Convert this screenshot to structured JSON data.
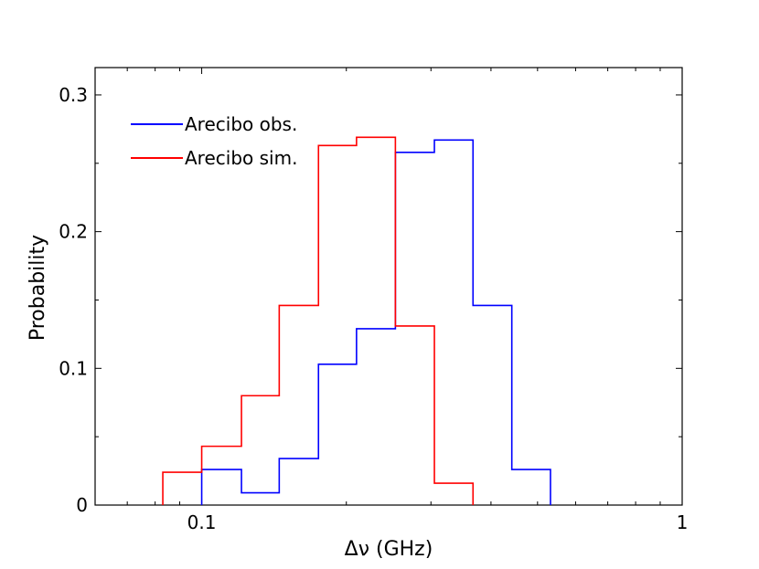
{
  "chart_data": {
    "type": "histogram-step",
    "xscale": "log",
    "xlim": [
      0.06,
      1.0
    ],
    "ylim": [
      0,
      0.32
    ],
    "xlabel": "Δν (GHz)",
    "ylabel": "Probability",
    "x_ticks": [
      {
        "value": 0.1,
        "label": "0.1"
      },
      {
        "value": 1,
        "label": "1"
      }
    ],
    "y_ticks": [
      {
        "value": 0,
        "label": "0"
      },
      {
        "value": 0.1,
        "label": "0.1"
      },
      {
        "value": 0.2,
        "label": "0.2"
      },
      {
        "value": 0.3,
        "label": "0.3"
      }
    ],
    "legend_position": "top-left",
    "series": [
      {
        "name": "Arecibo obs.",
        "color": "#0000ff",
        "edges": [
          0.1,
          0.121,
          0.145,
          0.175,
          0.21,
          0.253,
          0.305,
          0.367,
          0.442,
          0.532
        ],
        "values": [
          0.026,
          0.009,
          0.034,
          0.103,
          0.129,
          0.258,
          0.267,
          0.146,
          0.026
        ]
      },
      {
        "name": "Arecibo sim.",
        "color": "#ff0000",
        "edges": [
          0.083,
          0.1,
          0.121,
          0.145,
          0.175,
          0.21,
          0.253,
          0.305,
          0.367
        ],
        "values": [
          0.024,
          0.043,
          0.08,
          0.146,
          0.263,
          0.269,
          0.131,
          0.016
        ]
      }
    ]
  }
}
